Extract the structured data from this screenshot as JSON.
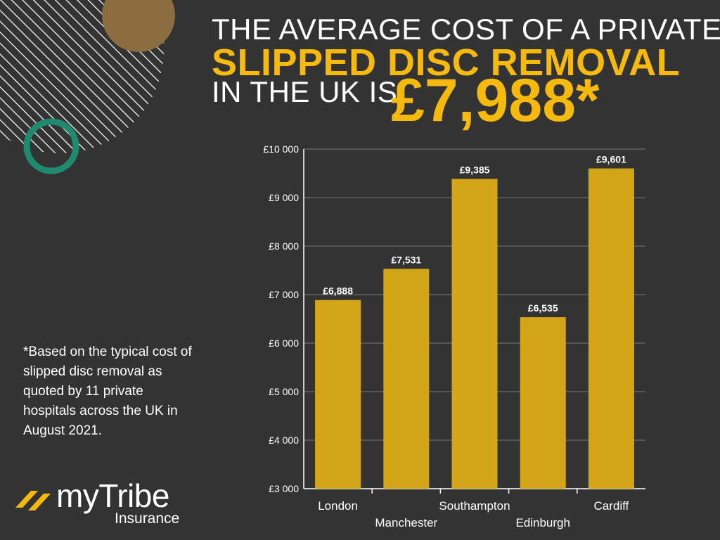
{
  "headline": {
    "line1": "THE AVERAGE COST OF A PRIVATE",
    "line2": "SLIPPED DISC REMOVAL",
    "line3": "IN THE UK IS",
    "amount": "£7,988*"
  },
  "footnote": "*Based on the typical cost of slipped disc removal as quoted by 11 private hospitals across the UK in August 2021.",
  "brand": {
    "name": "myTribe",
    "sub": "Insurance"
  },
  "colors": {
    "background": "#333333",
    "accent": "#f6b90d",
    "bar": "#d4a516",
    "teal": "#1f8a70",
    "tan": "#8b6d3f"
  },
  "chart_data": {
    "type": "bar",
    "categories": [
      "London",
      "Manchester",
      "Southampton",
      "Edinburgh",
      "Cardiff"
    ],
    "values": [
      6888,
      7531,
      9385,
      6535,
      9601
    ],
    "value_labels": [
      "£6,888",
      "£7,531",
      "£9,385",
      "£6,535",
      "£9,601"
    ],
    "ylim": [
      3000,
      10000
    ],
    "yticks": [
      3000,
      4000,
      5000,
      6000,
      7000,
      8000,
      9000,
      10000
    ],
    "ytick_labels": [
      "£3 000",
      "£4 000",
      "£5 000",
      "£6 000",
      "£7 000",
      "£8 000",
      "£9 000",
      "£10 000"
    ],
    "grid": true,
    "xlabel": "",
    "ylabel": ""
  }
}
